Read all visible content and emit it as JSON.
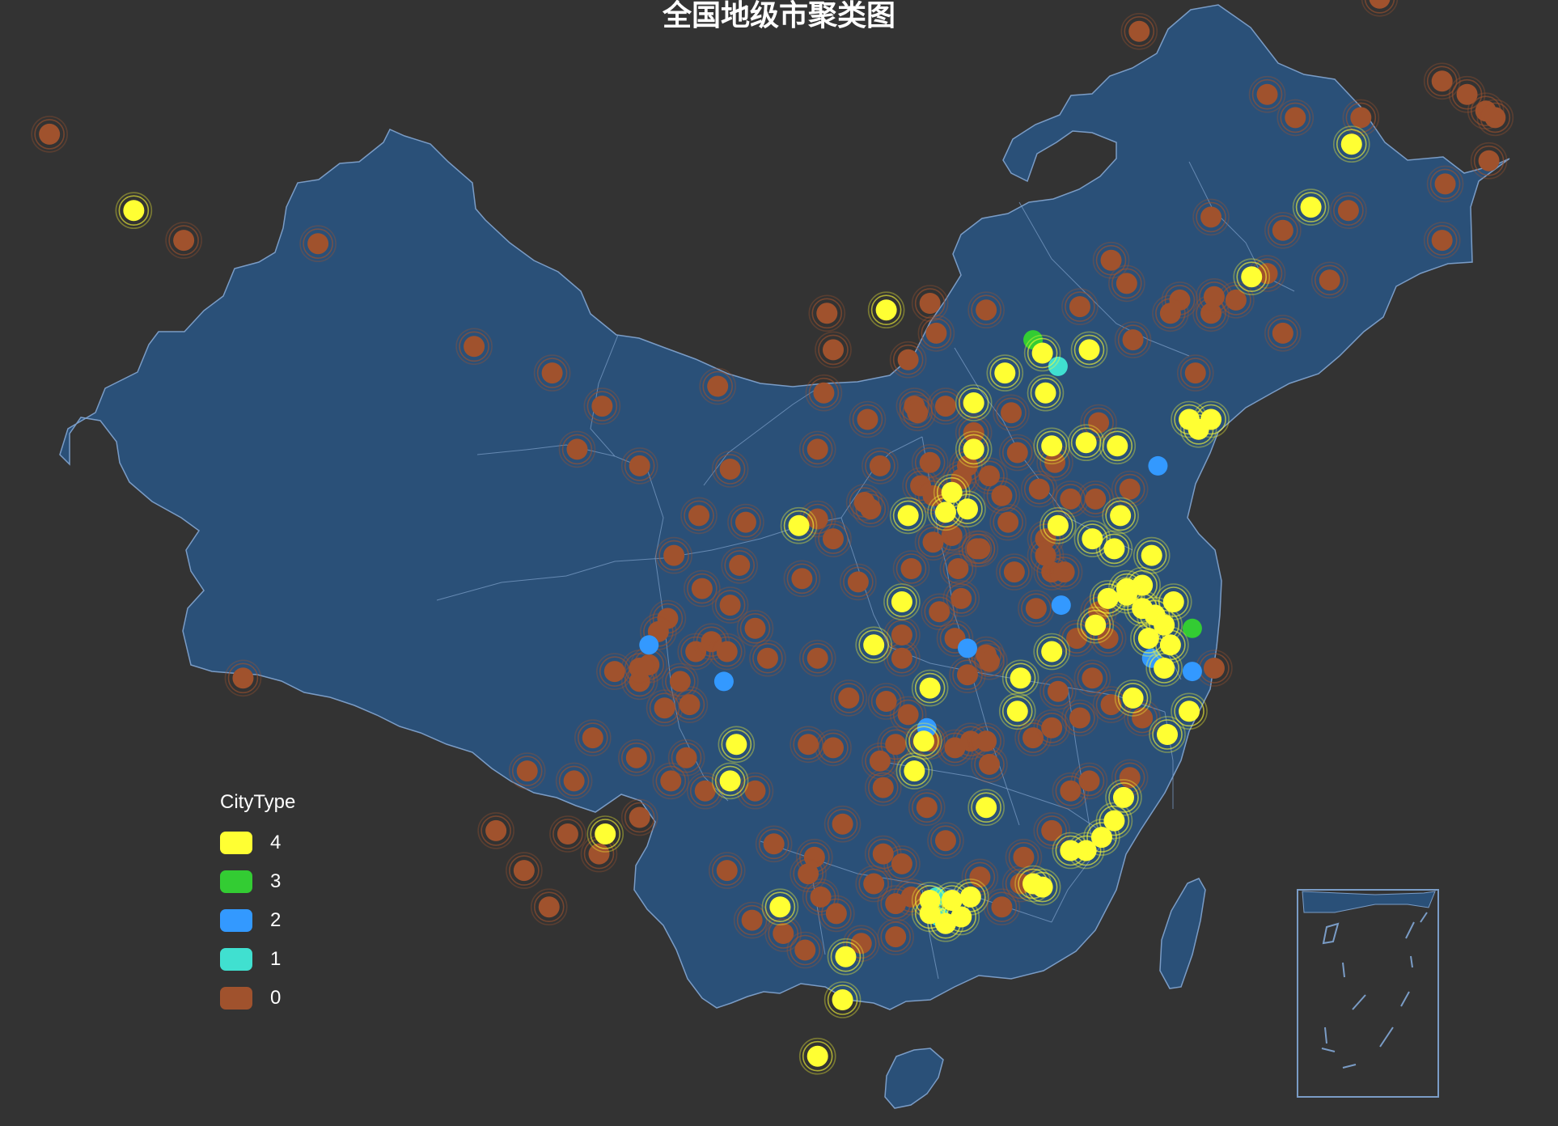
{
  "title": "全国地级市聚类图",
  "legend": {
    "title": "CityType",
    "items": [
      {
        "label": "4",
        "color": "#ffff33"
      },
      {
        "label": "3",
        "color": "#33cc33"
      },
      {
        "label": "2",
        "color": "#3399ff"
      },
      {
        "label": "1",
        "color": "#40e0d0"
      },
      {
        "label": "0",
        "color": "#a0522d"
      }
    ]
  },
  "colors": {
    "background": "#333333",
    "land": "#2a5078",
    "border": "#7a9cc6",
    "type4": "#ffff33",
    "type3": "#33cc33",
    "type2": "#3399ff",
    "type1": "#40e0d0",
    "type0": "#a0522d"
  },
  "cities": [
    {
      "lon": 87.6,
      "lat": 43.8,
      "t": 4
    },
    {
      "lon": 84.9,
      "lat": 46.1,
      "t": 0
    },
    {
      "lon": 89.2,
      "lat": 42.9,
      "t": 0
    },
    {
      "lon": 93.5,
      "lat": 42.8,
      "t": 0
    },
    {
      "lon": 91.1,
      "lat": 29.7,
      "t": 0
    },
    {
      "lon": 98.5,
      "lat": 39.7,
      "t": 0
    },
    {
      "lon": 101.0,
      "lat": 38.9,
      "t": 0
    },
    {
      "lon": 102.6,
      "lat": 37.9,
      "t": 0
    },
    {
      "lon": 103.8,
      "lat": 36.1,
      "t": 0
    },
    {
      "lon": 101.8,
      "lat": 36.6,
      "t": 0
    },
    {
      "lon": 106.3,
      "lat": 38.5,
      "t": 0
    },
    {
      "lon": 106.7,
      "lat": 36.0,
      "t": 0
    },
    {
      "lon": 105.7,
      "lat": 34.6,
      "t": 0
    },
    {
      "lon": 104.9,
      "lat": 33.4,
      "t": 0
    },
    {
      "lon": 111.7,
      "lat": 40.8,
      "t": 4
    },
    {
      "lon": 109.8,
      "lat": 40.7,
      "t": 0
    },
    {
      "lon": 110.0,
      "lat": 39.6,
      "t": 0
    },
    {
      "lon": 113.1,
      "lat": 41.0,
      "t": 0
    },
    {
      "lon": 118.9,
      "lat": 42.3,
      "t": 0
    },
    {
      "lon": 119.8,
      "lat": 49.2,
      "t": 0
    },
    {
      "lon": 122.1,
      "lat": 43.6,
      "t": 0
    },
    {
      "lon": 126.6,
      "lat": 45.8,
      "t": 4
    },
    {
      "lon": 124.8,
      "lat": 46.6,
      "t": 0
    },
    {
      "lon": 123.9,
      "lat": 47.3,
      "t": 0
    },
    {
      "lon": 127.5,
      "lat": 50.2,
      "t": 0
    },
    {
      "lon": 130.3,
      "lat": 47.3,
      "t": 0
    },
    {
      "lon": 130.9,
      "lat": 46.8,
      "t": 0
    },
    {
      "lon": 131.0,
      "lat": 45.3,
      "t": 0
    },
    {
      "lon": 129.6,
      "lat": 44.6,
      "t": 0
    },
    {
      "lon": 126.9,
      "lat": 46.6,
      "t": 0
    },
    {
      "lon": 129.5,
      "lat": 47.7,
      "t": 0
    },
    {
      "lon": 131.2,
      "lat": 46.6,
      "t": 0
    },
    {
      "lon": 125.3,
      "lat": 43.9,
      "t": 4
    },
    {
      "lon": 126.5,
      "lat": 43.8,
      "t": 0
    },
    {
      "lon": 124.4,
      "lat": 43.2,
      "t": 0
    },
    {
      "lon": 125.9,
      "lat": 41.7,
      "t": 0
    },
    {
      "lon": 129.5,
      "lat": 42.9,
      "t": 0
    },
    {
      "lon": 123.4,
      "lat": 41.8,
      "t": 4
    },
    {
      "lon": 121.6,
      "lat": 38.9,
      "t": 0
    },
    {
      "lon": 122.9,
      "lat": 41.1,
      "t": 0
    },
    {
      "lon": 123.9,
      "lat": 41.9,
      "t": 0
    },
    {
      "lon": 121.1,
      "lat": 41.1,
      "t": 0
    },
    {
      "lon": 119.4,
      "lat": 41.6,
      "t": 0
    },
    {
      "lon": 124.4,
      "lat": 40.1,
      "t": 0
    },
    {
      "lon": 122.1,
      "lat": 40.7,
      "t": 0
    },
    {
      "lon": 122.2,
      "lat": 41.2,
      "t": 0
    },
    {
      "lon": 120.8,
      "lat": 40.7,
      "t": 0
    },
    {
      "lon": 116.4,
      "lat": 39.9,
      "t": 3
    },
    {
      "lon": 117.2,
      "lat": 39.1,
      "t": 1
    },
    {
      "lon": 116.7,
      "lat": 39.5,
      "t": 4
    },
    {
      "lon": 114.5,
      "lat": 38.0,
      "t": 4
    },
    {
      "lon": 118.2,
      "lat": 39.6,
      "t": 4
    },
    {
      "lon": 115.5,
      "lat": 38.9,
      "t": 4
    },
    {
      "lon": 114.5,
      "lat": 36.6,
      "t": 4
    },
    {
      "lon": 116.8,
      "lat": 38.3,
      "t": 4
    },
    {
      "lon": 119.6,
      "lat": 39.9,
      "t": 0
    },
    {
      "lon": 114.9,
      "lat": 40.8,
      "t": 0
    },
    {
      "lon": 117.9,
      "lat": 40.9,
      "t": 0
    },
    {
      "lon": 115.7,
      "lat": 37.7,
      "t": 0
    },
    {
      "lon": 114.5,
      "lat": 37.1,
      "t": 0
    },
    {
      "lon": 112.6,
      "lat": 37.9,
      "t": 0
    },
    {
      "lon": 113.3,
      "lat": 40.1,
      "t": 0
    },
    {
      "lon": 112.4,
      "lat": 39.3,
      "t": 0
    },
    {
      "lon": 113.6,
      "lat": 37.9,
      "t": 0
    },
    {
      "lon": 113.1,
      "lat": 36.2,
      "t": 0
    },
    {
      "lon": 112.8,
      "lat": 35.5,
      "t": 0
    },
    {
      "lon": 111.5,
      "lat": 36.1,
      "t": 0
    },
    {
      "lon": 111.0,
      "lat": 35.0,
      "t": 0
    },
    {
      "lon": 112.7,
      "lat": 37.7,
      "t": 0
    },
    {
      "lon": 111.1,
      "lat": 37.5,
      "t": 0
    },
    {
      "lon": 117.0,
      "lat": 36.7,
      "t": 4
    },
    {
      "lon": 120.4,
      "lat": 36.1,
      "t": 2
    },
    {
      "lon": 121.4,
      "lat": 37.5,
      "t": 4
    },
    {
      "lon": 119.1,
      "lat": 36.7,
      "t": 4
    },
    {
      "lon": 118.1,
      "lat": 36.8,
      "t": 4
    },
    {
      "lon": 122.1,
      "lat": 37.5,
      "t": 4
    },
    {
      "lon": 121.7,
      "lat": 37.2,
      "t": 4
    },
    {
      "lon": 117.1,
      "lat": 36.2,
      "t": 0
    },
    {
      "lon": 116.6,
      "lat": 35.4,
      "t": 0
    },
    {
      "lon": 118.4,
      "lat": 35.1,
      "t": 0
    },
    {
      "lon": 115.4,
      "lat": 35.2,
      "t": 0
    },
    {
      "lon": 118.5,
      "lat": 37.4,
      "t": 0
    },
    {
      "lon": 117.6,
      "lat": 35.1,
      "t": 0
    },
    {
      "lon": 119.5,
      "lat": 35.4,
      "t": 0
    },
    {
      "lon": 115.9,
      "lat": 36.5,
      "t": 0
    },
    {
      "lon": 113.6,
      "lat": 34.7,
      "t": 4
    },
    {
      "lon": 114.3,
      "lat": 34.8,
      "t": 4
    },
    {
      "lon": 112.4,
      "lat": 34.6,
      "t": 4
    },
    {
      "lon": 113.8,
      "lat": 35.3,
      "t": 4
    },
    {
      "lon": 114.3,
      "lat": 36.1,
      "t": 0
    },
    {
      "lon": 115.6,
      "lat": 34.4,
      "t": 0
    },
    {
      "lon": 114.6,
      "lat": 33.6,
      "t": 0
    },
    {
      "lon": 114.0,
      "lat": 33.0,
      "t": 0
    },
    {
      "lon": 112.5,
      "lat": 33.0,
      "t": 0
    },
    {
      "lon": 113.8,
      "lat": 34.0,
      "t": 0
    },
    {
      "lon": 111.2,
      "lat": 34.8,
      "t": 0
    },
    {
      "lon": 114.1,
      "lat": 32.1,
      "t": 0
    },
    {
      "lon": 114.7,
      "lat": 33.6,
      "t": 0
    },
    {
      "lon": 113.2,
      "lat": 33.8,
      "t": 0
    },
    {
      "lon": 113.2,
      "lat": 35.2,
      "t": 0
    },
    {
      "lon": 115.0,
      "lat": 35.8,
      "t": 0
    },
    {
      "lon": 114.1,
      "lat": 35.7,
      "t": 0
    },
    {
      "lon": 108.9,
      "lat": 34.3,
      "t": 4
    },
    {
      "lon": 109.5,
      "lat": 34.5,
      "t": 0
    },
    {
      "lon": 107.2,
      "lat": 34.4,
      "t": 0
    },
    {
      "lon": 109.5,
      "lat": 36.6,
      "t": 0
    },
    {
      "lon": 109.7,
      "lat": 38.3,
      "t": 0
    },
    {
      "lon": 107.0,
      "lat": 33.1,
      "t": 0
    },
    {
      "lon": 109.0,
      "lat": 32.7,
      "t": 0
    },
    {
      "lon": 110.0,
      "lat": 33.9,
      "t": 0
    },
    {
      "lon": 118.8,
      "lat": 32.1,
      "t": 4
    },
    {
      "lon": 120.6,
      "lat": 31.3,
      "t": 4
    },
    {
      "lon": 120.3,
      "lat": 31.6,
      "t": 4
    },
    {
      "lon": 119.9,
      "lat": 31.8,
      "t": 4
    },
    {
      "lon": 119.4,
      "lat": 32.4,
      "t": 4
    },
    {
      "lon": 120.9,
      "lat": 32.0,
      "t": 4
    },
    {
      "lon": 117.2,
      "lat": 34.3,
      "t": 4
    },
    {
      "lon": 119.0,
      "lat": 33.6,
      "t": 4
    },
    {
      "lon": 120.2,
      "lat": 33.4,
      "t": 4
    },
    {
      "lon": 119.2,
      "lat": 34.6,
      "t": 4
    },
    {
      "lon": 119.9,
      "lat": 32.5,
      "t": 4
    },
    {
      "lon": 119.4,
      "lat": 32.2,
      "t": 4
    },
    {
      "lon": 118.3,
      "lat": 33.9,
      "t": 4
    },
    {
      "lon": 121.5,
      "lat": 31.2,
      "t": 3
    },
    {
      "lon": 120.2,
      "lat": 30.3,
      "t": 2
    },
    {
      "lon": 121.5,
      "lat": 29.9,
      "t": 2
    },
    {
      "lon": 120.7,
      "lat": 28.0,
      "t": 4
    },
    {
      "lon": 120.1,
      "lat": 30.9,
      "t": 4
    },
    {
      "lon": 120.8,
      "lat": 30.7,
      "t": 4
    },
    {
      "lon": 120.6,
      "lat": 30.0,
      "t": 4
    },
    {
      "lon": 119.6,
      "lat": 29.1,
      "t": 4
    },
    {
      "lon": 121.4,
      "lat": 28.7,
      "t": 4
    },
    {
      "lon": 118.9,
      "lat": 28.9,
      "t": 0
    },
    {
      "lon": 119.9,
      "lat": 28.5,
      "t": 0
    },
    {
      "lon": 122.2,
      "lat": 30.0,
      "t": 0
    },
    {
      "lon": 117.3,
      "lat": 31.9,
      "t": 2
    },
    {
      "lon": 118.4,
      "lat": 31.3,
      "t": 4
    },
    {
      "lon": 117.0,
      "lat": 30.5,
      "t": 4
    },
    {
      "lon": 117.0,
      "lat": 32.9,
      "t": 0
    },
    {
      "lon": 116.8,
      "lat": 33.9,
      "t": 0
    },
    {
      "lon": 118.5,
      "lat": 31.7,
      "t": 0
    },
    {
      "lon": 116.5,
      "lat": 31.8,
      "t": 0
    },
    {
      "lon": 115.8,
      "lat": 32.9,
      "t": 0
    },
    {
      "lon": 118.3,
      "lat": 29.7,
      "t": 0
    },
    {
      "lon": 117.8,
      "lat": 30.9,
      "t": 0
    },
    {
      "lon": 118.8,
      "lat": 30.9,
      "t": 0
    },
    {
      "lon": 116.8,
      "lat": 33.4,
      "t": 0
    },
    {
      "lon": 117.4,
      "lat": 32.9,
      "t": 0
    },
    {
      "lon": 114.3,
      "lat": 30.6,
      "t": 2
    },
    {
      "lon": 111.3,
      "lat": 30.7,
      "t": 4
    },
    {
      "lon": 112.2,
      "lat": 32.0,
      "t": 4
    },
    {
      "lon": 110.8,
      "lat": 32.6,
      "t": 0
    },
    {
      "lon": 114.9,
      "lat": 30.4,
      "t": 0
    },
    {
      "lon": 112.2,
      "lat": 30.3,
      "t": 0
    },
    {
      "lon": 113.9,
      "lat": 30.9,
      "t": 0
    },
    {
      "lon": 109.5,
      "lat": 30.3,
      "t": 0
    },
    {
      "lon": 115.0,
      "lat": 30.2,
      "t": 0
    },
    {
      "lon": 112.2,
      "lat": 31.0,
      "t": 0
    },
    {
      "lon": 113.4,
      "lat": 31.7,
      "t": 0
    },
    {
      "lon": 114.3,
      "lat": 29.8,
      "t": 0
    },
    {
      "lon": 113.0,
      "lat": 28.2,
      "t": 2
    },
    {
      "lon": 112.9,
      "lat": 27.8,
      "t": 4
    },
    {
      "lon": 113.1,
      "lat": 29.4,
      "t": 4
    },
    {
      "lon": 112.6,
      "lat": 26.9,
      "t": 4
    },
    {
      "lon": 111.7,
      "lat": 29.0,
      "t": 0
    },
    {
      "lon": 111.5,
      "lat": 27.2,
      "t": 0
    },
    {
      "lon": 113.0,
      "lat": 25.8,
      "t": 0
    },
    {
      "lon": 111.6,
      "lat": 26.4,
      "t": 0
    },
    {
      "lon": 110.0,
      "lat": 27.6,
      "t": 0
    },
    {
      "lon": 110.5,
      "lat": 29.1,
      "t": 0
    },
    {
      "lon": 112.4,
      "lat": 28.6,
      "t": 0
    },
    {
      "lon": 112.0,
      "lat": 27.7,
      "t": 0
    },
    {
      "lon": 113.1,
      "lat": 27.8,
      "t": 0
    },
    {
      "lon": 115.9,
      "lat": 28.7,
      "t": 4
    },
    {
      "lon": 116.0,
      "lat": 29.7,
      "t": 4
    },
    {
      "lon": 114.9,
      "lat": 25.8,
      "t": 4
    },
    {
      "lon": 117.2,
      "lat": 29.3,
      "t": 0
    },
    {
      "lon": 117.9,
      "lat": 28.5,
      "t": 0
    },
    {
      "lon": 115.0,
      "lat": 27.1,
      "t": 0
    },
    {
      "lon": 116.4,
      "lat": 27.9,
      "t": 0
    },
    {
      "lon": 114.4,
      "lat": 27.8,
      "t": 0
    },
    {
      "lon": 113.9,
      "lat": 27.6,
      "t": 0
    },
    {
      "lon": 117.0,
      "lat": 28.2,
      "t": 0
    },
    {
      "lon": 114.9,
      "lat": 27.8,
      "t": 0
    },
    {
      "lon": 119.3,
      "lat": 26.1,
      "t": 4
    },
    {
      "lon": 118.1,
      "lat": 24.5,
      "t": 4
    },
    {
      "lon": 118.6,
      "lat": 24.9,
      "t": 4
    },
    {
      "lon": 119.0,
      "lat": 25.4,
      "t": 4
    },
    {
      "lon": 117.6,
      "lat": 24.5,
      "t": 4
    },
    {
      "lon": 117.0,
      "lat": 25.1,
      "t": 0
    },
    {
      "lon": 117.6,
      "lat": 26.3,
      "t": 0
    },
    {
      "lon": 118.2,
      "lat": 26.6,
      "t": 0
    },
    {
      "lon": 119.5,
      "lat": 26.7,
      "t": 0
    },
    {
      "lon": 113.3,
      "lat": 23.1,
      "t": 1
    },
    {
      "lon": 114.1,
      "lat": 22.5,
      "t": 4
    },
    {
      "lon": 113.1,
      "lat": 23.0,
      "t": 4
    },
    {
      "lon": 113.8,
      "lat": 23.0,
      "t": 4
    },
    {
      "lon": 113.4,
      "lat": 22.5,
      "t": 1
    },
    {
      "lon": 113.6,
      "lat": 22.3,
      "t": 4
    },
    {
      "lon": 114.4,
      "lat": 23.1,
      "t": 4
    },
    {
      "lon": 113.1,
      "lat": 22.6,
      "t": 4
    },
    {
      "lon": 116.7,
      "lat": 23.4,
      "t": 4
    },
    {
      "lon": 116.4,
      "lat": 23.5,
      "t": 4
    },
    {
      "lon": 110.4,
      "lat": 21.3,
      "t": 4
    },
    {
      "lon": 113.6,
      "lat": 24.8,
      "t": 0
    },
    {
      "lon": 112.5,
      "lat": 23.1,
      "t": 0
    },
    {
      "lon": 112.0,
      "lat": 21.9,
      "t": 0
    },
    {
      "lon": 110.9,
      "lat": 21.7,
      "t": 0
    },
    {
      "lon": 115.4,
      "lat": 22.8,
      "t": 0
    },
    {
      "lon": 116.1,
      "lat": 24.3,
      "t": 0
    },
    {
      "lon": 114.7,
      "lat": 23.7,
      "t": 0
    },
    {
      "lon": 112.0,
      "lat": 22.9,
      "t": 0
    },
    {
      "lon": 116.0,
      "lat": 23.5,
      "t": 0
    },
    {
      "lon": 112.2,
      "lat": 24.1,
      "t": 0
    },
    {
      "lon": 108.3,
      "lat": 22.8,
      "t": 4
    },
    {
      "lon": 110.3,
      "lat": 25.3,
      "t": 0
    },
    {
      "lon": 109.4,
      "lat": 24.3,
      "t": 0
    },
    {
      "lon": 111.3,
      "lat": 23.5,
      "t": 0
    },
    {
      "lon": 109.1,
      "lat": 21.5,
      "t": 0
    },
    {
      "lon": 108.4,
      "lat": 22.0,
      "t": 0
    },
    {
      "lon": 109.6,
      "lat": 23.1,
      "t": 0
    },
    {
      "lon": 110.1,
      "lat": 22.6,
      "t": 0
    },
    {
      "lon": 106.6,
      "lat": 23.9,
      "t": 0
    },
    {
      "lon": 107.4,
      "lat": 22.4,
      "t": 0
    },
    {
      "lon": 111.6,
      "lat": 24.4,
      "t": 0
    },
    {
      "lon": 108.1,
      "lat": 24.7,
      "t": 0
    },
    {
      "lon": 109.2,
      "lat": 23.8,
      "t": 0
    },
    {
      "lon": 110.3,
      "lat": 20.0,
      "t": 4
    },
    {
      "lon": 109.5,
      "lat": 18.3,
      "t": 4
    },
    {
      "lon": 106.7,
      "lat": 26.6,
      "t": 4
    },
    {
      "lon": 106.9,
      "lat": 27.7,
      "t": 4
    },
    {
      "lon": 105.9,
      "lat": 26.3,
      "t": 0
    },
    {
      "lon": 104.8,
      "lat": 26.6,
      "t": 0
    },
    {
      "lon": 109.2,
      "lat": 27.7,
      "t": 0
    },
    {
      "lon": 105.3,
      "lat": 27.3,
      "t": 0
    },
    {
      "lon": 107.5,
      "lat": 26.3,
      "t": 0
    },
    {
      "lon": 102.7,
      "lat": 25.0,
      "t": 4
    },
    {
      "lon": 103.8,
      "lat": 25.5,
      "t": 0
    },
    {
      "lon": 102.5,
      "lat": 24.4,
      "t": 0
    },
    {
      "lon": 103.7,
      "lat": 27.3,
      "t": 0
    },
    {
      "lon": 100.2,
      "lat": 26.9,
      "t": 0
    },
    {
      "lon": 99.2,
      "lat": 25.1,
      "t": 0
    },
    {
      "lon": 100.1,
      "lat": 23.9,
      "t": 0
    },
    {
      "lon": 100.9,
      "lat": 22.8,
      "t": 0
    },
    {
      "lon": 101.5,
      "lat": 25.0,
      "t": 0
    },
    {
      "lon": 104.1,
      "lat": 30.7,
      "t": 2
    },
    {
      "lon": 106.5,
      "lat": 29.6,
      "t": 2
    },
    {
      "lon": 104.7,
      "lat": 31.5,
      "t": 0
    },
    {
      "lon": 105.8,
      "lat": 32.4,
      "t": 0
    },
    {
      "lon": 105.6,
      "lat": 30.5,
      "t": 0
    },
    {
      "lon": 104.1,
      "lat": 30.1,
      "t": 0
    },
    {
      "lon": 103.8,
      "lat": 29.6,
      "t": 0
    },
    {
      "lon": 104.6,
      "lat": 28.8,
      "t": 0
    },
    {
      "lon": 105.4,
      "lat": 28.9,
      "t": 0
    },
    {
      "lon": 106.1,
      "lat": 30.8,
      "t": 0
    },
    {
      "lon": 107.5,
      "lat": 31.2,
      "t": 0
    },
    {
      "lon": 106.7,
      "lat": 31.9,
      "t": 0
    },
    {
      "lon": 103.0,
      "lat": 29.9,
      "t": 0
    },
    {
      "lon": 103.8,
      "lat": 30.0,
      "t": 0
    },
    {
      "lon": 104.4,
      "lat": 31.1,
      "t": 0
    },
    {
      "lon": 105.1,
      "lat": 29.6,
      "t": 0
    },
    {
      "lon": 102.3,
      "lat": 27.9,
      "t": 0
    },
    {
      "lon": 101.7,
      "lat": 26.6,
      "t": 0
    },
    {
      "lon": 106.6,
      "lat": 30.5,
      "t": 0
    },
    {
      "lon": 107.9,
      "lat": 30.3,
      "t": 0
    }
  ]
}
